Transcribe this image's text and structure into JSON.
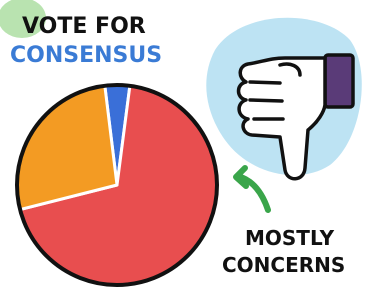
{
  "chart_data": {
    "type": "pie",
    "title_lines": [
      "VOTE FOR",
      "CONSENSUS"
    ],
    "annotation_lines": [
      "MOSTLY",
      "CONCERNS"
    ],
    "values": [
      4,
      69,
      27
    ],
    "colors": [
      "#3a6fd8",
      "#e84e4f",
      "#f39b23"
    ]
  }
}
